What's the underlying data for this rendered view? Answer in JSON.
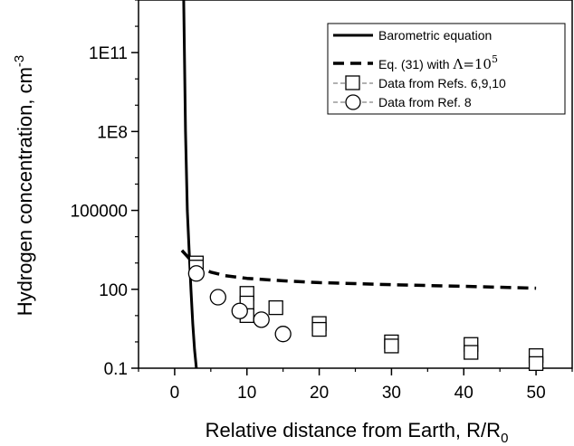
{
  "chart_data": {
    "type": "line",
    "title": "",
    "xlabel": "Relative distance from Earth, R/R",
    "xlabel_sub": "0",
    "ylabel": "Hydrogen concentration, cm",
    "ylabel_sup": "-3",
    "x_scale": "linear",
    "y_scale": "log",
    "xlim": [
      -5,
      55
    ],
    "ylim": [
      0.1,
      10000000000000.0
    ],
    "x_ticks": [
      0,
      10,
      20,
      30,
      40,
      50
    ],
    "x_tick_labels": [
      "0",
      "10",
      "20",
      "30",
      "40",
      "50"
    ],
    "y_ticks": [
      0.1,
      100,
      100000,
      100000000.0,
      100000000000.0
    ],
    "y_tick_labels": [
      "0.1",
      "100",
      "100000",
      "1E8",
      "1E11"
    ],
    "grid": false,
    "legend_position": "top-right",
    "series": [
      {
        "name": "Barometric equation",
        "style": "solid",
        "x": [
          1.25,
          1.5,
          1.75,
          2.0,
          2.25,
          2.5,
          2.75,
          3.0
        ],
        "y": [
          10000000000000.0,
          100000000.0,
          100000.0,
          3000,
          100,
          5,
          0.5,
          0.1
        ]
      },
      {
        "name": "Eq. (31) with",
        "name_symbol": "Λ=10",
        "name_exponent": "5",
        "style": "dashed",
        "x": [
          1,
          2,
          3,
          4,
          5,
          7,
          10,
          15,
          20,
          25,
          30,
          40,
          50
        ],
        "y": [
          3000,
          1500,
          900,
          600,
          450,
          330,
          260,
          210,
          180,
          165,
          150,
          130,
          110
        ]
      },
      {
        "name": "Data from Refs. 6,9,10",
        "style": "markers-square",
        "x": [
          3,
          3,
          10,
          10,
          10,
          14,
          20,
          20,
          30,
          30,
          41,
          41,
          50,
          50
        ],
        "y": [
          1000,
          700,
          70,
          30,
          10,
          20,
          5,
          3,
          1,
          0.7,
          0.8,
          0.4,
          0.3,
          0.15
        ]
      },
      {
        "name": "Data from Ref. 8",
        "style": "markers-circle",
        "x": [
          3,
          6,
          9,
          12,
          15
        ],
        "y": [
          400,
          50,
          15,
          7,
          2
        ]
      }
    ]
  }
}
